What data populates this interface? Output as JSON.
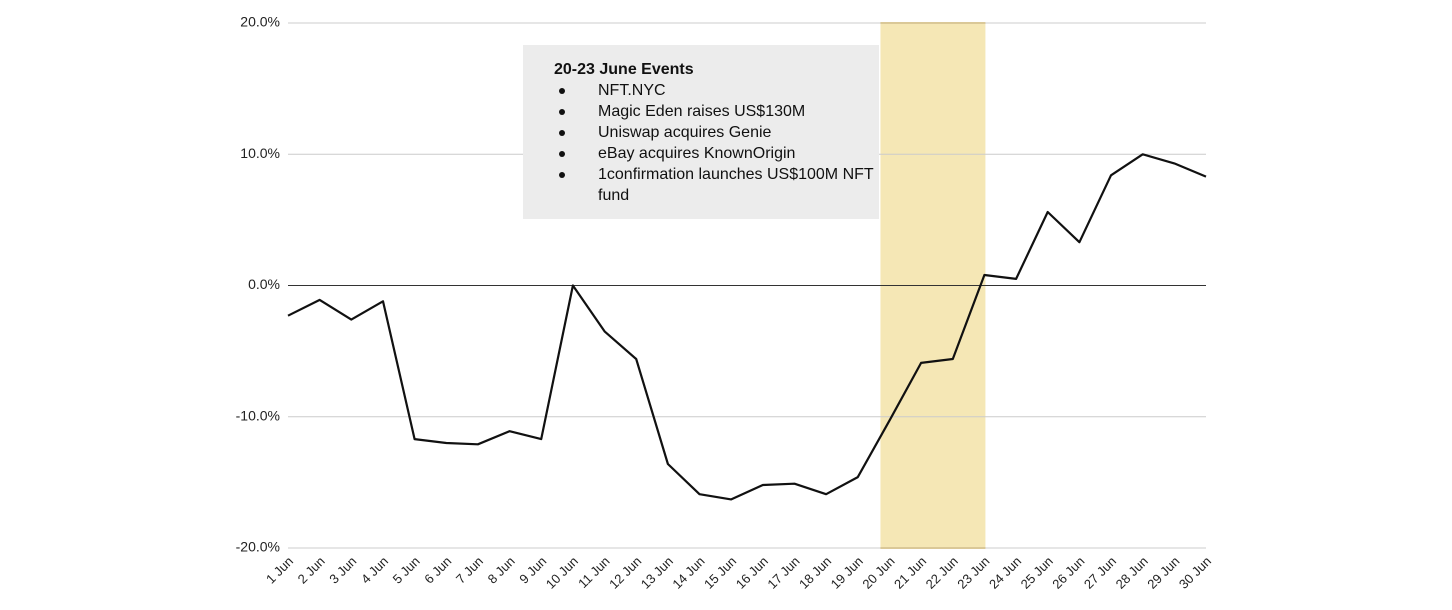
{
  "chart_data": {
    "type": "line",
    "title": "",
    "xlabel": "",
    "ylabel": "",
    "ylim": [
      -20,
      20
    ],
    "yticks": [
      "20.0%",
      "10.0%",
      "0.0%",
      "-10.0%",
      "-20.0%"
    ],
    "ytick_values": [
      20,
      10,
      0,
      -10,
      -20
    ],
    "grid": true,
    "line_color": "#111111",
    "highlight_color": "#f5e7b5",
    "highlight_edge_color": "#e8c462",
    "highlight_range": [
      "20 Jun",
      "23 Jun"
    ],
    "categories": [
      "1 Jun",
      "2 Jun",
      "3 Jun",
      "4 Jun",
      "5 Jun",
      "6 Jun",
      "7 Jun",
      "8 Jun",
      "9 Jun",
      "10 Jun",
      "11 Jun",
      "12 Jun",
      "13 Jun",
      "14 Jun",
      "15 Jun",
      "16 Jun",
      "17 Jun",
      "18 Jun",
      "19 Jun",
      "20 Jun",
      "21 Jun",
      "22 Jun",
      "23 Jun",
      "24 Jun",
      "25 Jun",
      "26 Jun",
      "27 Jun",
      "28 Jun",
      "29 Jun",
      "30 Jun"
    ],
    "series": [
      {
        "values": [
          -2.3,
          -1.1,
          -2.6,
          -1.2,
          -11.7,
          -12.0,
          -12.1,
          -11.1,
          -11.7,
          0.0,
          -3.5,
          -5.6,
          -13.6,
          -15.9,
          -16.3,
          -15.2,
          -15.1,
          -15.9,
          -14.6,
          -10.3,
          -5.9,
          -5.6,
          0.8,
          0.5,
          5.6,
          3.3,
          8.4,
          10.0,
          9.3,
          8.3
        ]
      }
    ]
  },
  "annotation": {
    "title": "20-23 June Events",
    "items": [
      "NFT.NYC",
      "Magic Eden raises US$130M",
      "Uniswap acquires Genie",
      "eBay acquires KnownOrigin",
      "1confirmation launches US$100M NFT fund"
    ]
  }
}
